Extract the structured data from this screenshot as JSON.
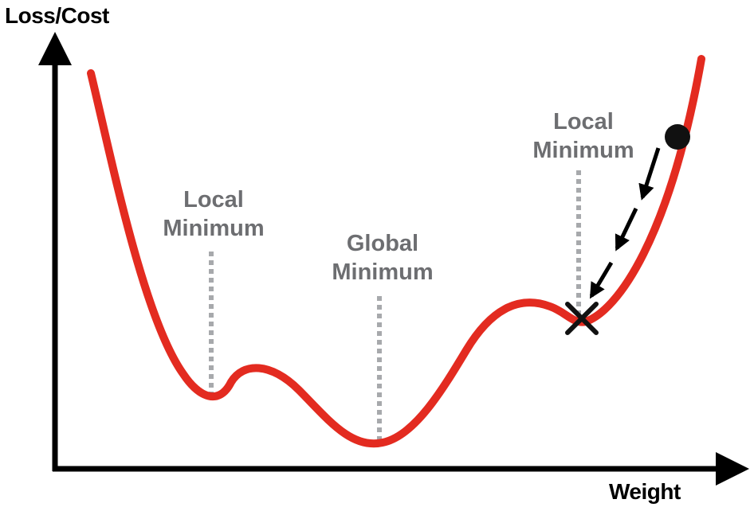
{
  "axes": {
    "y_label": "Loss/Cost",
    "x_label": "Weight"
  },
  "annotations": [
    {
      "line1": "Local",
      "line2": "Minimum"
    },
    {
      "line1": "Global",
      "line2": "Minimum"
    },
    {
      "line1": "Local",
      "line2": "Minimum"
    }
  ],
  "colors": {
    "curve": "#e32b20",
    "axes": "#000000",
    "label_text": "#6d6e71",
    "guide_line": "#a7a9ac",
    "marker": "#111111"
  },
  "icons": {
    "start_point": "filled-circle",
    "end_point": "x-mark",
    "path": "dashed-arrows"
  }
}
